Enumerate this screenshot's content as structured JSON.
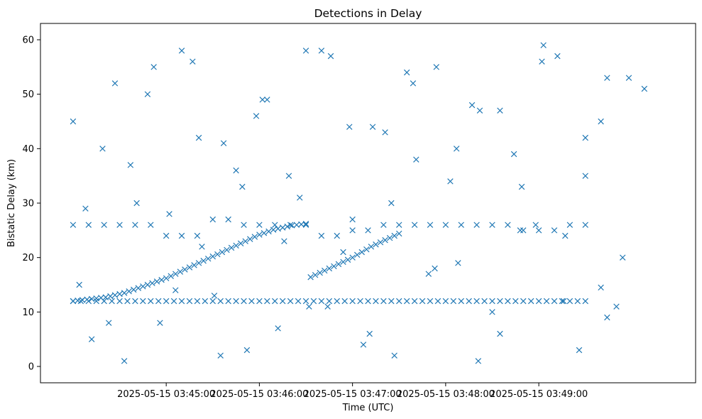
{
  "chart_data": {
    "type": "scatter",
    "title": "Detections in Delay",
    "xlabel": "Time (UTC)",
    "ylabel": "Bistatic Delay (km)",
    "marker": "x",
    "color": "#1f77b4",
    "x_unit": "seconds since 2025-05-15 03:44:00 UTC",
    "xlim": [
      -21,
      401
    ],
    "ylim": [
      -3,
      63
    ],
    "x_ticks": [
      {
        "value": 60,
        "label": "2025-05-15 03:45:00"
      },
      {
        "value": 120,
        "label": "2025-05-15 03:46:00"
      },
      {
        "value": 180,
        "label": "2025-05-15 03:47:00"
      },
      {
        "value": 240,
        "label": "2025-05-15 03:48:00"
      },
      {
        "value": 300,
        "label": "2025-05-15 03:49:00"
      }
    ],
    "y_ticks": [
      {
        "value": 0,
        "label": "0"
      },
      {
        "value": 10,
        "label": "10"
      },
      {
        "value": 20,
        "label": "20"
      },
      {
        "value": 30,
        "label": "30"
      },
      {
        "value": 40,
        "label": "40"
      },
      {
        "value": 50,
        "label": "50"
      },
      {
        "value": 60,
        "label": "60"
      }
    ],
    "x_range_covered": [
      0,
      369
    ],
    "series": [
      {
        "name": "main track",
        "x": [
          0,
          3,
          6,
          9,
          12,
          15,
          18,
          21,
          24,
          27,
          30,
          33,
          36,
          39,
          42,
          45,
          48,
          51,
          54,
          57,
          60,
          63,
          66,
          69,
          72,
          75,
          78,
          81,
          84,
          87,
          90,
          93,
          96,
          99,
          102,
          105,
          108,
          111,
          114,
          117,
          120,
          123,
          126,
          129,
          132,
          135,
          138,
          141,
          144,
          147,
          150,
          153,
          156,
          159,
          162,
          165,
          168,
          171,
          174,
          177,
          180,
          183,
          186,
          189,
          192,
          195,
          198,
          201,
          204,
          207,
          210
        ],
        "y": [
          12.0,
          12.1,
          12.2,
          12.3,
          12.4,
          12.5,
          12.6,
          12.7,
          12.9,
          13.1,
          13.3,
          13.5,
          13.8,
          14.1,
          14.4,
          14.7,
          15.0,
          15.3,
          15.6,
          15.9,
          16.2,
          16.6,
          17.0,
          17.4,
          17.8,
          18.2,
          18.6,
          19.0,
          19.4,
          19.8,
          20.2,
          20.6,
          21.0,
          21.4,
          21.8,
          22.2,
          22.6,
          23.0,
          23.4,
          23.8,
          24.2,
          24.5,
          24.8,
          25.1,
          25.3,
          25.5,
          25.7,
          25.9,
          26.0,
          26.1,
          26.2,
          16.4,
          16.8,
          17.2,
          17.6,
          18.0,
          18.4,
          18.8,
          19.2,
          19.6,
          20.0,
          20.5,
          21.0,
          21.5,
          22.0,
          22.4,
          22.8,
          23.2,
          23.6,
          24.0,
          24.4
        ]
      },
      {
        "name": "constant 12 km track",
        "x": [
          0,
          5,
          10,
          15,
          20,
          25,
          30,
          35,
          40,
          45,
          50,
          55,
          60,
          65,
          70,
          75,
          80,
          85,
          90,
          95,
          100,
          105,
          110,
          115,
          120,
          125,
          130,
          135,
          140,
          145,
          150,
          155,
          160,
          165,
          170,
          175,
          180,
          185,
          190,
          195,
          200,
          205,
          210,
          215,
          220,
          225,
          230,
          235,
          240,
          245,
          250,
          255,
          260,
          265,
          270,
          275,
          280,
          285,
          290,
          295,
          300,
          305,
          310,
          315,
          320,
          325,
          330
        ],
        "y": [
          12,
          12,
          12,
          12,
          12,
          12,
          12,
          12,
          12,
          12,
          12,
          12,
          12,
          12,
          12,
          12,
          12,
          12,
          12,
          12,
          12,
          12,
          12,
          12,
          12,
          12,
          12,
          12,
          12,
          12,
          12,
          12,
          12,
          12,
          12,
          12,
          12,
          12,
          12,
          12,
          12,
          12,
          12,
          12,
          12,
          12,
          12,
          12,
          12,
          12,
          12,
          12,
          12,
          12,
          12,
          12,
          12,
          12,
          12,
          12,
          12,
          12,
          12,
          12,
          12,
          12,
          12
        ]
      },
      {
        "name": "constant 26 km track",
        "x": [
          0,
          10,
          20,
          30,
          40,
          50,
          60,
          70,
          80,
          90,
          100,
          110,
          120,
          130,
          140,
          150,
          160,
          170,
          180,
          190,
          200,
          210,
          220,
          230,
          240,
          250,
          260,
          270,
          280,
          290,
          300,
          310,
          320,
          330,
          340,
          350
        ],
        "y": [
          26,
          26,
          26,
          26,
          26,
          26,
          24,
          24,
          24,
          27,
          27,
          26,
          26,
          26,
          26,
          26,
          24,
          24,
          25,
          25,
          26,
          26,
          26,
          26,
          26,
          26,
          26,
          26,
          26,
          25,
          25,
          25,
          26,
          26,
          14.5,
          11
        ]
      },
      {
        "name": "scattered detections",
        "x": [
          0,
          12,
          27,
          41,
          56,
          70,
          83,
          97,
          112,
          125,
          139,
          152,
          166,
          180,
          193,
          207,
          221,
          234,
          248,
          262,
          275,
          289,
          303,
          317,
          330,
          344,
          358,
          4,
          19,
          33,
          48,
          62,
          77,
          91,
          105,
          118,
          132,
          146,
          160,
          174,
          187,
          201,
          215,
          229,
          243,
          257,
          270,
          284,
          298,
          312,
          326,
          340,
          354,
          368,
          8,
          23,
          37,
          52,
          66,
          81,
          95,
          109,
          122,
          136,
          150,
          164,
          178,
          191,
          205,
          219,
          233,
          247,
          261,
          275,
          288,
          302,
          316,
          330,
          344
        ],
        "y": [
          45,
          5,
          52,
          30,
          8,
          58,
          22,
          41,
          3,
          49,
          35,
          11,
          57,
          27,
          44,
          2,
          38,
          55,
          19,
          47,
          6,
          33,
          59,
          24,
          42,
          9,
          53,
          15,
          40,
          1,
          50,
          28,
          56,
          13,
          36,
          46,
          7,
          31,
          58,
          21,
          4,
          43,
          54,
          17,
          34,
          48,
          10,
          39,
          26,
          57,
          3,
          45,
          20,
          51,
          29,
          8,
          37,
          55,
          14,
          42,
          2,
          33,
          49,
          23,
          58,
          11,
          44,
          6,
          30,
          52,
          18,
          40,
          1,
          47,
          25,
          56,
          12,
          35,
          53
        ]
      }
    ]
  }
}
